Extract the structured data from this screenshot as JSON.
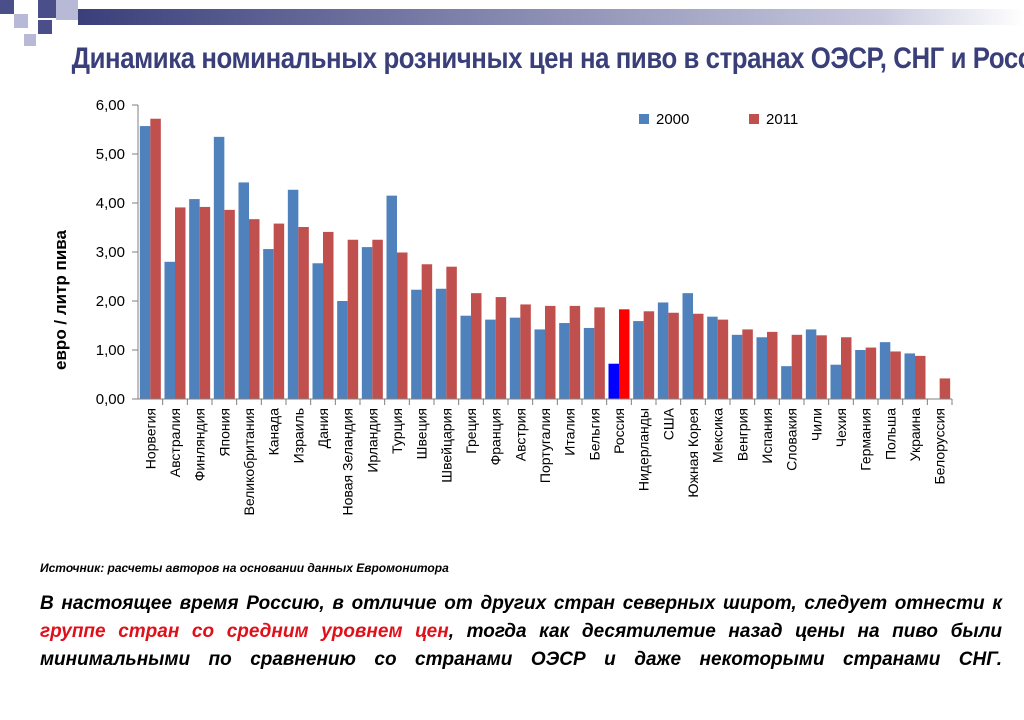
{
  "title": "Динамика номинальных розничных цен на пиво в странах ОЭСР, СНГ и России",
  "source": "Источник: расчеты авторов на основании данных Евромонитора",
  "paragraph": {
    "part1": "В настоящее время Россию, в отличие от других стран северных широт, следует отнести к ",
    "highlight": "группе стран со средним уровнем цен",
    "part2": ", тогда как десятилетие назад цены на пиво были минимальными по сравнению со странами ОЭСР и даже некоторыми странами СНГ."
  },
  "colors": {
    "series_2000": "#4f81bd",
    "series_2011": "#c0504d",
    "russia_2000": "#0000ff",
    "russia_2011": "#ff0000",
    "title": "#3a3f7a",
    "highlight": "#e0101a",
    "deco_dark": "#4a4f8a",
    "deco_light": "#b7b9d6"
  },
  "chart_data": {
    "type": "bar",
    "ylabel": "евро / литр пива",
    "ylim": [
      0,
      6
    ],
    "yticks": [
      "0,00",
      "1,00",
      "2,00",
      "3,00",
      "4,00",
      "5,00",
      "6,00"
    ],
    "legend_position": "top-right",
    "highlighted_category": "Россия",
    "categories": [
      "Норвегия",
      "Австралия",
      "Финляндия",
      "Япония",
      "Великобритания",
      "Канада",
      "Израиль",
      "Дания",
      "Новая Зеландия",
      "Ирландия",
      "Турция",
      "Швеция",
      "Швейцария",
      "Греция",
      "Франция",
      "Австрия",
      "Португалия",
      "Италия",
      "Бельгия",
      "Россия",
      "Нидерланды",
      "США",
      "Южная Корея",
      "Мексика",
      "Венгрия",
      "Испания",
      "Словакия",
      "Чили",
      "Чехия",
      "Германия",
      "Польша",
      "Украина",
      "Белоруссия"
    ],
    "series": [
      {
        "name": "2000",
        "values": [
          5.57,
          2.8,
          4.08,
          5.35,
          4.42,
          3.06,
          4.27,
          2.77,
          2.0,
          3.1,
          4.15,
          2.23,
          2.25,
          1.7,
          1.62,
          1.66,
          1.42,
          1.55,
          1.45,
          0.72,
          1.59,
          1.97,
          2.16,
          1.68,
          1.31,
          1.26,
          0.67,
          1.42,
          0.7,
          1.0,
          1.16,
          0.93,
          null
        ]
      },
      {
        "name": "2011",
        "values": [
          5.72,
          3.91,
          3.92,
          3.86,
          3.67,
          3.58,
          3.51,
          3.41,
          3.25,
          3.25,
          2.99,
          2.75,
          2.7,
          2.16,
          2.08,
          1.93,
          1.9,
          1.9,
          1.87,
          1.83,
          1.79,
          1.76,
          1.74,
          1.62,
          1.42,
          1.37,
          1.31,
          1.3,
          1.26,
          1.05,
          0.97,
          0.88,
          0.42
        ]
      }
    ]
  }
}
